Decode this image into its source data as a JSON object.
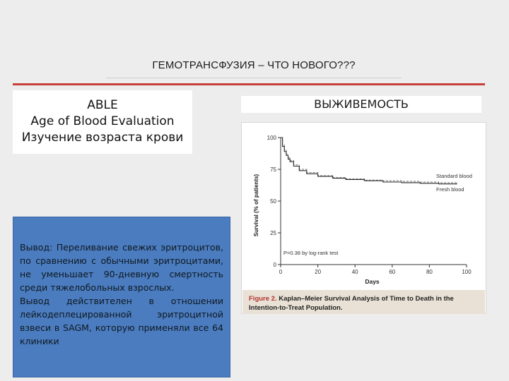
{
  "slide": {
    "title": "ГЕМОТРАНСФУЗИЯ – ЧТО НОВОГО???"
  },
  "study": {
    "line1": "ABLE",
    "line2": "Age of Blood Evaluation",
    "line3": "Изучение возраста крови"
  },
  "conclusion": {
    "paragraph1": "Вывод: Переливание свежих эритроцитов, по сравнению с обычными эритроцитами, не уменьшает 90-дневную смертность среди тяжелобольных взрослых.",
    "paragraph2": "Вывод действителен в отношении лейкодеплецированной эритроцитной взвеси в SAGM, которую применяли все 64 клиники"
  },
  "figure": {
    "header": "ВЫЖИВЕМОСТЬ",
    "caption_label": "Figure 2.",
    "caption_text": "Kaplan–Meier Survival Analysis of Time to Death in the Intention-to-Treat Population."
  },
  "chart_data": {
    "type": "line",
    "title": "",
    "xlabel": "Days",
    "ylabel": "Survival (% of patients)",
    "xlim": [
      0,
      100
    ],
    "ylim": [
      0,
      100
    ],
    "x_ticks": [
      0,
      20,
      40,
      60,
      80,
      100
    ],
    "y_ticks": [
      0,
      25,
      50,
      75,
      100
    ],
    "grid": false,
    "annotation": "P=0.38 by log-rank test",
    "series": [
      {
        "name": "Standard blood",
        "color": "#7a7a7a",
        "dash": "3,2",
        "x": [
          0,
          1,
          2,
          3,
          4,
          5,
          7,
          10,
          14,
          20,
          28,
          35,
          45,
          55,
          65,
          75,
          85,
          90,
          95
        ],
        "y": [
          100,
          94,
          90,
          87,
          84,
          82,
          78.5,
          75,
          72.5,
          70,
          68.5,
          67.5,
          66.5,
          66,
          65.5,
          65,
          64.5,
          64.5,
          64.5
        ]
      },
      {
        "name": "Fresh blood",
        "color": "#2a2a2a",
        "dash": "",
        "x": [
          0,
          1,
          2,
          3,
          4,
          5,
          7,
          10,
          14,
          20,
          28,
          35,
          45,
          55,
          65,
          75,
          85,
          90,
          95
        ],
        "y": [
          100,
          93,
          89,
          86,
          83,
          81,
          77.5,
          74,
          71.5,
          69.5,
          68,
          67,
          66,
          65,
          64.5,
          64,
          63.5,
          63.5,
          63.5
        ]
      }
    ]
  }
}
